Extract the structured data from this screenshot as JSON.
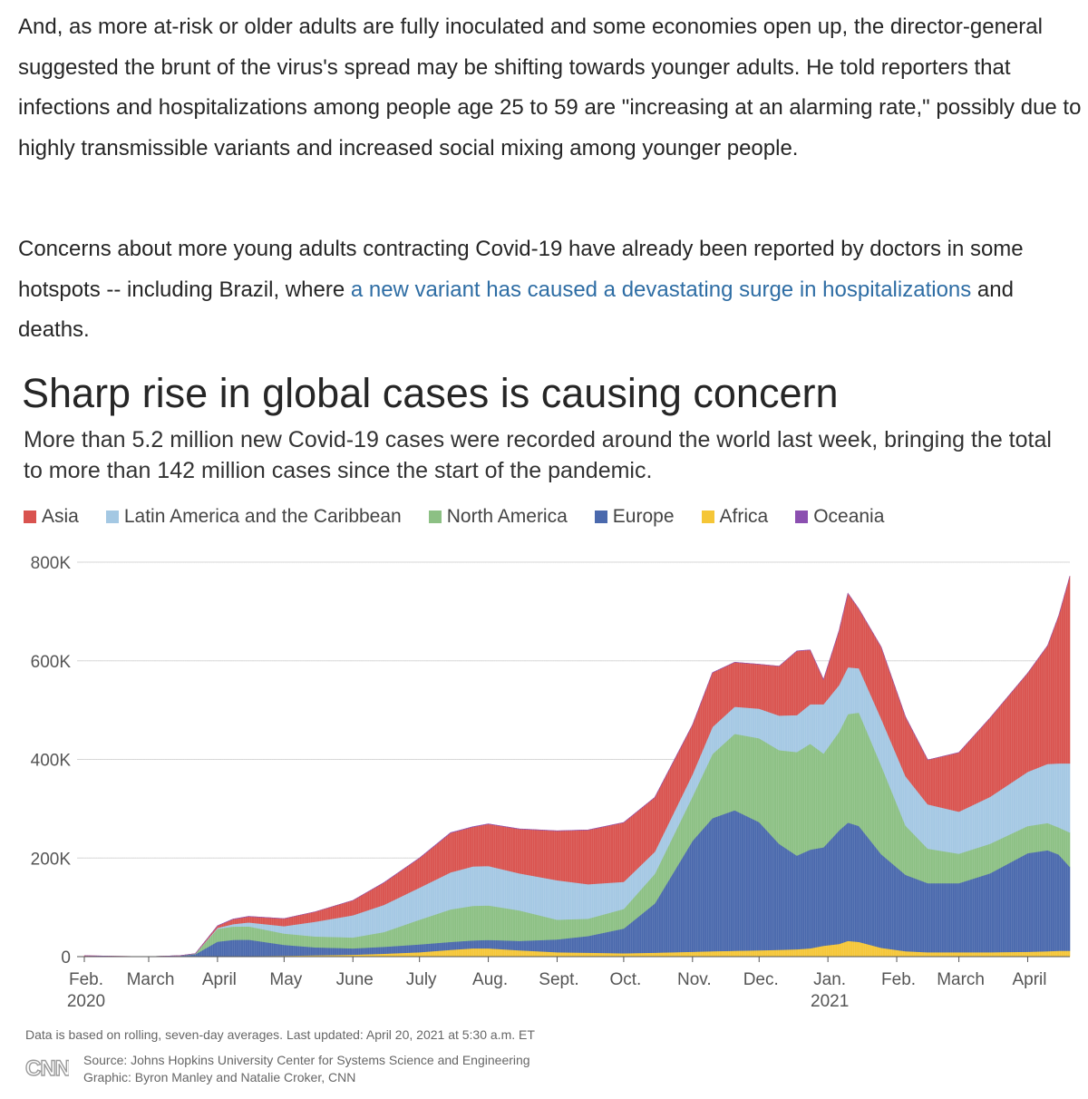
{
  "article": {
    "paragraph1": "And, as more at-risk or older adults are fully inoculated and some economies open up, the director-general suggested the brunt of the virus's spread may be shifting towards younger adults. He told reporters that infections and hospitalizations among people age 25 to 59 are \"increasing at an alarming rate,\" possibly due to highly transmissible variants and increased social mixing among younger people.",
    "paragraph2_before": "Concerns about more young adults contracting Covid-19 have already been reported by doctors in some hotspots -- including Brazil, where ",
    "paragraph2_link": "a new variant has caused a devastating surge in hospitalizations",
    "paragraph2_after": " and deaths."
  },
  "colors": {
    "link": "#2e6da4",
    "Asia": "#d9534f",
    "Latin America and the Caribbean": "#a4c8e3",
    "North America": "#8cc084",
    "Europe": "#4a69ad",
    "Africa": "#f5c637",
    "Oceania": "#8b4fb0"
  },
  "chart_data": {
    "type": "area",
    "title": "Sharp rise in global cases is causing concern",
    "subtitle": "More than 5.2 million new Covid-19 cases were recorded around the world last week, bringing the total to more than 142 million cases since the start of the pandemic.",
    "legend": [
      "Asia",
      "Latin America and the Caribbean",
      "North America",
      "Europe",
      "Africa",
      "Oceania"
    ],
    "legend_position": "top-left",
    "stacked": true,
    "grid": "horizontal",
    "ylim": [
      0,
      800000
    ],
    "y_ticks": [
      0,
      200000,
      400000,
      600000,
      800000
    ],
    "y_tick_labels": [
      "0",
      "200K",
      "400K",
      "600K",
      "800K"
    ],
    "x_tick_labels": [
      {
        "label": "Feb.",
        "sub": "2020"
      },
      {
        "label": "March",
        "sub": ""
      },
      {
        "label": "April",
        "sub": ""
      },
      {
        "label": "May",
        "sub": ""
      },
      {
        "label": "June",
        "sub": ""
      },
      {
        "label": "July",
        "sub": ""
      },
      {
        "label": "Aug.",
        "sub": ""
      },
      {
        "label": "Sept.",
        "sub": ""
      },
      {
        "label": "Oct.",
        "sub": ""
      },
      {
        "label": "Nov.",
        "sub": ""
      },
      {
        "label": "Dec.",
        "sub": ""
      },
      {
        "label": "Jan.",
        "sub": "2021"
      },
      {
        "label": "Feb.",
        "sub": ""
      },
      {
        "label": "March",
        "sub": ""
      },
      {
        "label": "April",
        "sub": ""
      }
    ],
    "x_range": [
      "2020-02-01",
      "2021-04-20"
    ],
    "x": [
      "2020-02-01",
      "2020-02-15",
      "2020-03-01",
      "2020-03-15",
      "2020-03-22",
      "2020-04-01",
      "2020-04-08",
      "2020-04-15",
      "2020-05-01",
      "2020-05-15",
      "2020-06-01",
      "2020-06-15",
      "2020-07-01",
      "2020-07-15",
      "2020-07-25",
      "2020-08-01",
      "2020-08-15",
      "2020-09-01",
      "2020-09-15",
      "2020-10-01",
      "2020-10-15",
      "2020-11-01",
      "2020-11-10",
      "2020-11-20",
      "2020-12-01",
      "2020-12-10",
      "2020-12-18",
      "2020-12-24",
      "2020-12-30",
      "2021-01-06",
      "2021-01-10",
      "2021-01-15",
      "2021-01-25",
      "2021-02-05",
      "2021-02-15",
      "2021-03-01",
      "2021-03-15",
      "2021-04-01",
      "2021-04-10",
      "2021-04-15",
      "2021-04-20"
    ],
    "series": [
      {
        "name": "Africa",
        "values": [
          0,
          0,
          0,
          0,
          0,
          500,
          1000,
          1500,
          2000,
          3000,
          4000,
          6000,
          9000,
          14000,
          17000,
          17000,
          13000,
          9000,
          8000,
          7000,
          8000,
          10000,
          11000,
          12000,
          13000,
          14000,
          15000,
          17000,
          22000,
          26000,
          32000,
          30000,
          18000,
          11000,
          9000,
          9000,
          9000,
          10000,
          11000,
          12000,
          12000
        ]
      },
      {
        "name": "Europe",
        "values": [
          0,
          0,
          0,
          2000,
          5000,
          30000,
          33000,
          33000,
          22000,
          16000,
          13000,
          14000,
          16000,
          16000,
          16000,
          17000,
          19000,
          26000,
          34000,
          50000,
          100000,
          225000,
          270000,
          285000,
          260000,
          215000,
          190000,
          200000,
          200000,
          230000,
          240000,
          235000,
          190000,
          155000,
          140000,
          140000,
          160000,
          200000,
          205000,
          195000,
          170000
        ]
      },
      {
        "name": "North America",
        "values": [
          0,
          0,
          0,
          0,
          1000,
          26000,
          27000,
          27000,
          23000,
          22000,
          22000,
          30000,
          50000,
          66000,
          70000,
          70000,
          62000,
          40000,
          35000,
          40000,
          60000,
          90000,
          130000,
          155000,
          170000,
          190000,
          210000,
          215000,
          190000,
          200000,
          220000,
          230000,
          180000,
          100000,
          70000,
          60000,
          60000,
          55000,
          55000,
          55000,
          70000
        ]
      },
      {
        "name": "Latin America and the Caribbean",
        "values": [
          0,
          0,
          0,
          0,
          0,
          2000,
          5000,
          8000,
          15000,
          30000,
          45000,
          55000,
          65000,
          75000,
          80000,
          80000,
          75000,
          80000,
          70000,
          55000,
          45000,
          45000,
          55000,
          55000,
          60000,
          70000,
          75000,
          80000,
          100000,
          95000,
          95000,
          90000,
          95000,
          100000,
          90000,
          85000,
          95000,
          110000,
          120000,
          130000,
          140000
        ]
      },
      {
        "name": "Asia",
        "values": [
          2000,
          1000,
          0,
          0,
          0,
          4000,
          10000,
          12000,
          15000,
          20000,
          30000,
          45000,
          60000,
          80000,
          80000,
          85000,
          90000,
          100000,
          110000,
          120000,
          110000,
          100000,
          110000,
          90000,
          90000,
          100000,
          130000,
          110000,
          50000,
          110000,
          150000,
          120000,
          145000,
          120000,
          90000,
          120000,
          160000,
          200000,
          240000,
          300000,
          380000
        ]
      },
      {
        "name": "Oceania",
        "values": [
          0,
          0,
          0,
          0,
          0,
          300,
          300,
          200,
          100,
          100,
          100,
          200,
          300,
          500,
          600,
          500,
          300,
          200,
          100,
          100,
          100,
          100,
          100,
          100,
          100,
          100,
          100,
          100,
          100,
          100,
          100,
          100,
          100,
          100,
          100,
          100,
          100,
          100,
          100,
          100,
          100
        ]
      }
    ]
  },
  "footer": {
    "note": "Data is based on rolling, seven-day averages. Last updated: April 20, 2021 at 5:30 a.m. ET",
    "source": "Source: Johns Hopkins University Center for Systems Science and Engineering",
    "credit": "Graphic: Byron Manley and Natalie Croker, CNN",
    "logo_text": "CNN"
  }
}
